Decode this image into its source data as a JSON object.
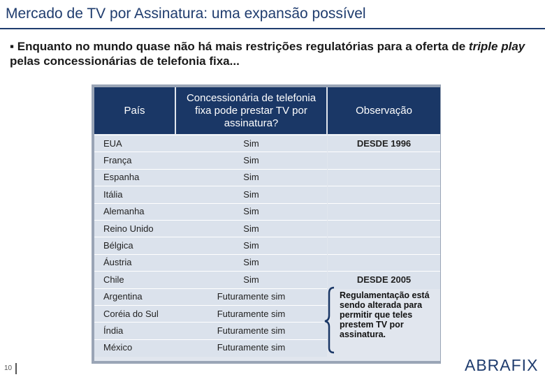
{
  "header": {
    "title": "Mercado de TV por Assinatura: uma expansão possível"
  },
  "intro": {
    "before": "Enquanto no mundo quase não há mais restrições regulatórias para a oferta de ",
    "emphasis": "triple play",
    "after": " pelas concessionárias de telefonia fixa..."
  },
  "table": {
    "headers": [
      "País",
      "Concessionária de telefonia fixa pode prestar TV por assinatura?",
      "Observação"
    ],
    "rows": [
      [
        "EUA",
        "Sim",
        "DESDE 1996"
      ],
      [
        "França",
        "Sim",
        null
      ],
      [
        "Espanha",
        "Sim",
        null
      ],
      [
        "Itália",
        "Sim",
        null
      ],
      [
        "Alemanha",
        "Sim",
        null
      ],
      [
        "Reino Unido",
        "Sim",
        null
      ],
      [
        "Bélgica",
        "Sim",
        null
      ],
      [
        "Áustria",
        "Sim",
        null
      ],
      [
        "Chile",
        "Sim",
        "DESDE 2005"
      ],
      [
        "Argentina",
        "Futuramente sim",
        null
      ],
      [
        "Coréia do Sul",
        "Futuramente sim",
        null
      ],
      [
        "Índia",
        "Futuramente sim",
        null
      ],
      [
        "México",
        "Futuramente sim",
        null
      ]
    ],
    "group_note": "Regulamentação está sendo alterada para permitir que teles prestem TV por assinatura."
  },
  "footer": {
    "page": "10",
    "logo": "ABRAFIX"
  }
}
